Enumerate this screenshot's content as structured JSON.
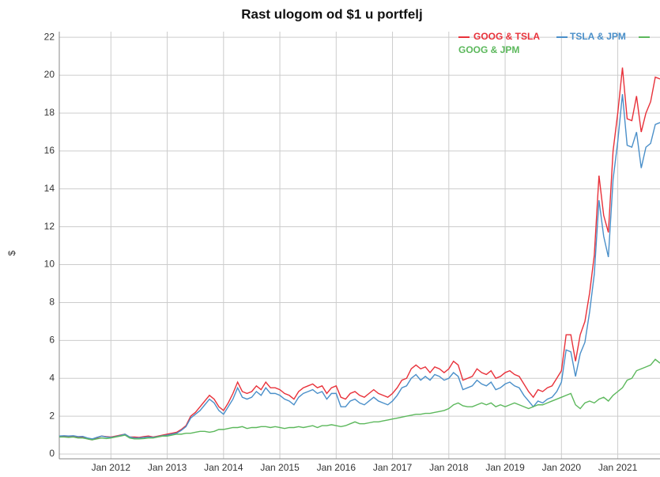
{
  "chart_data": {
    "type": "line",
    "title": "Rast ulogom od $1 u portfelj",
    "y_label": "$",
    "x": [
      "2011-02",
      "2011-03",
      "2011-04",
      "2011-05",
      "2011-06",
      "2011-07",
      "2011-08",
      "2011-09",
      "2011-10",
      "2011-11",
      "2011-12",
      "2012-01",
      "2012-02",
      "2012-03",
      "2012-04",
      "2012-05",
      "2012-06",
      "2012-07",
      "2012-08",
      "2012-09",
      "2012-10",
      "2012-11",
      "2012-12",
      "2013-01",
      "2013-02",
      "2013-03",
      "2013-04",
      "2013-05",
      "2013-06",
      "2013-07",
      "2013-08",
      "2013-09",
      "2013-10",
      "2013-11",
      "2013-12",
      "2014-01",
      "2014-02",
      "2014-03",
      "2014-04",
      "2014-05",
      "2014-06",
      "2014-07",
      "2014-08",
      "2014-09",
      "2014-10",
      "2014-11",
      "2014-12",
      "2015-01",
      "2015-02",
      "2015-03",
      "2015-04",
      "2015-05",
      "2015-06",
      "2015-07",
      "2015-08",
      "2015-09",
      "2015-10",
      "2015-11",
      "2015-12",
      "2016-01",
      "2016-02",
      "2016-03",
      "2016-04",
      "2016-05",
      "2016-06",
      "2016-07",
      "2016-08",
      "2016-09",
      "2016-10",
      "2016-11",
      "2016-12",
      "2017-01",
      "2017-02",
      "2017-03",
      "2017-04",
      "2017-05",
      "2017-06",
      "2017-07",
      "2017-08",
      "2017-09",
      "2017-10",
      "2017-11",
      "2017-12",
      "2018-01",
      "2018-02",
      "2018-03",
      "2018-04",
      "2018-05",
      "2018-06",
      "2018-07",
      "2018-08",
      "2018-09",
      "2018-10",
      "2018-11",
      "2018-12",
      "2019-01",
      "2019-02",
      "2019-03",
      "2019-04",
      "2019-05",
      "2019-06",
      "2019-07",
      "2019-08",
      "2019-09",
      "2019-10",
      "2019-11",
      "2019-12",
      "2020-01",
      "2020-02",
      "2020-03",
      "2020-04",
      "2020-05",
      "2020-06",
      "2020-07",
      "2020-08",
      "2020-09",
      "2020-10",
      "2020-11",
      "2020-12",
      "2021-01",
      "2021-02",
      "2021-03",
      "2021-04",
      "2021-05",
      "2021-06",
      "2021-07",
      "2021-08",
      "2021-09",
      "2021-10"
    ],
    "series": [
      {
        "name": "GOOG & TSLA",
        "color": "#e8313a",
        "values": [
          0.9,
          0.92,
          0.9,
          0.93,
          0.88,
          0.9,
          0.8,
          0.75,
          0.85,
          0.95,
          0.92,
          0.9,
          0.95,
          1.0,
          1.05,
          0.9,
          0.9,
          0.88,
          0.92,
          0.95,
          0.9,
          0.95,
          1.0,
          1.05,
          1.1,
          1.15,
          1.3,
          1.5,
          2.0,
          2.2,
          2.5,
          2.8,
          3.1,
          2.9,
          2.5,
          2.3,
          2.7,
          3.2,
          3.8,
          3.3,
          3.2,
          3.3,
          3.6,
          3.4,
          3.8,
          3.5,
          3.5,
          3.4,
          3.2,
          3.1,
          2.9,
          3.3,
          3.5,
          3.6,
          3.7,
          3.5,
          3.6,
          3.2,
          3.5,
          3.6,
          3.0,
          2.9,
          3.2,
          3.3,
          3.1,
          3.0,
          3.2,
          3.4,
          3.2,
          3.1,
          3.0,
          3.2,
          3.5,
          3.9,
          4.0,
          4.5,
          4.7,
          4.5,
          4.6,
          4.3,
          4.6,
          4.5,
          4.3,
          4.5,
          4.9,
          4.7,
          3.9,
          4.0,
          4.1,
          4.5,
          4.3,
          4.2,
          4.4,
          4.0,
          4.1,
          4.3,
          4.4,
          4.2,
          4.1,
          3.7,
          3.3,
          3.0,
          3.4,
          3.3,
          3.5,
          3.6,
          4.0,
          4.4,
          6.3,
          6.3,
          4.9,
          6.3,
          7.0,
          8.5,
          10.5,
          14.7,
          12.6,
          11.7,
          16.0,
          18.0,
          20.4,
          17.7,
          17.6,
          18.9,
          17.0,
          18.0,
          18.6,
          19.9,
          19.8
        ]
      },
      {
        "name": "TSLA & JPM",
        "color": "#4a8fc9",
        "values": [
          0.95,
          0.97,
          0.95,
          0.97,
          0.92,
          0.93,
          0.85,
          0.8,
          0.88,
          0.95,
          0.9,
          0.88,
          0.92,
          0.98,
          1.05,
          0.9,
          0.85,
          0.85,
          0.88,
          0.9,
          0.88,
          0.92,
          0.97,
          1.0,
          1.05,
          1.1,
          1.25,
          1.45,
          1.9,
          2.1,
          2.3,
          2.6,
          2.9,
          2.7,
          2.3,
          2.1,
          2.5,
          2.9,
          3.5,
          3.0,
          2.9,
          3.0,
          3.3,
          3.1,
          3.5,
          3.2,
          3.2,
          3.1,
          2.9,
          2.8,
          2.6,
          3.0,
          3.2,
          3.3,
          3.4,
          3.2,
          3.3,
          2.9,
          3.2,
          3.2,
          2.5,
          2.5,
          2.8,
          2.9,
          2.7,
          2.6,
          2.8,
          3.0,
          2.8,
          2.7,
          2.6,
          2.8,
          3.1,
          3.5,
          3.6,
          4.0,
          4.2,
          3.9,
          4.1,
          3.9,
          4.2,
          4.1,
          3.9,
          4.0,
          4.3,
          4.1,
          3.4,
          3.5,
          3.6,
          3.9,
          3.7,
          3.6,
          3.8,
          3.4,
          3.5,
          3.7,
          3.8,
          3.6,
          3.5,
          3.1,
          2.8,
          2.5,
          2.8,
          2.7,
          2.9,
          3.0,
          3.3,
          3.8,
          5.5,
          5.4,
          4.1,
          5.3,
          5.9,
          7.5,
          9.5,
          13.4,
          11.5,
          10.4,
          14.5,
          16.5,
          19.0,
          16.3,
          16.2,
          17.0,
          15.1,
          16.2,
          16.4,
          17.4,
          17.5
        ]
      },
      {
        "name": "GOOG & JPM",
        "color": "#5cb85c",
        "values": [
          0.9,
          0.9,
          0.88,
          0.9,
          0.85,
          0.85,
          0.8,
          0.75,
          0.8,
          0.85,
          0.82,
          0.85,
          0.9,
          0.95,
          1.0,
          0.85,
          0.8,
          0.8,
          0.82,
          0.85,
          0.85,
          0.9,
          0.95,
          0.95,
          1.0,
          1.05,
          1.05,
          1.1,
          1.1,
          1.15,
          1.2,
          1.2,
          1.15,
          1.2,
          1.3,
          1.3,
          1.35,
          1.4,
          1.4,
          1.45,
          1.35,
          1.4,
          1.4,
          1.45,
          1.45,
          1.4,
          1.45,
          1.4,
          1.35,
          1.4,
          1.4,
          1.45,
          1.4,
          1.45,
          1.5,
          1.4,
          1.5,
          1.5,
          1.55,
          1.5,
          1.45,
          1.5,
          1.6,
          1.7,
          1.6,
          1.6,
          1.65,
          1.7,
          1.7,
          1.75,
          1.8,
          1.85,
          1.9,
          1.95,
          2.0,
          2.05,
          2.1,
          2.1,
          2.15,
          2.15,
          2.2,
          2.25,
          2.3,
          2.4,
          2.6,
          2.7,
          2.55,
          2.5,
          2.5,
          2.6,
          2.7,
          2.6,
          2.7,
          2.5,
          2.6,
          2.5,
          2.6,
          2.7,
          2.6,
          2.5,
          2.4,
          2.5,
          2.6,
          2.6,
          2.7,
          2.8,
          2.9,
          3.0,
          3.1,
          3.2,
          2.6,
          2.4,
          2.7,
          2.8,
          2.7,
          2.9,
          3.0,
          2.8,
          3.1,
          3.3,
          3.5,
          3.9,
          4.0,
          4.4,
          4.5,
          4.6,
          4.7,
          5.0,
          4.8
        ]
      }
    ],
    "xlim": [
      "2011-02",
      "2021-10"
    ],
    "xticks": [
      {
        "value": "2012-01",
        "label": "Jan 2012"
      },
      {
        "value": "2013-01",
        "label": "Jan 2013"
      },
      {
        "value": "2014-01",
        "label": "Jan 2014"
      },
      {
        "value": "2015-01",
        "label": "Jan 2015"
      },
      {
        "value": "2016-01",
        "label": "Jan 2016"
      },
      {
        "value": "2017-01",
        "label": "Jan 2017"
      },
      {
        "value": "2018-01",
        "label": "Jan 2018"
      },
      {
        "value": "2019-01",
        "label": "Jan 2019"
      },
      {
        "value": "2020-01",
        "label": "Jan 2020"
      },
      {
        "value": "2021-01",
        "label": "Jan 2021"
      }
    ],
    "ylim": [
      -0.25,
      22.3
    ],
    "yticks": [
      0,
      2,
      4,
      6,
      8,
      10,
      12,
      14,
      16,
      18,
      20,
      22
    ],
    "grid": true,
    "legend": "upper right"
  }
}
